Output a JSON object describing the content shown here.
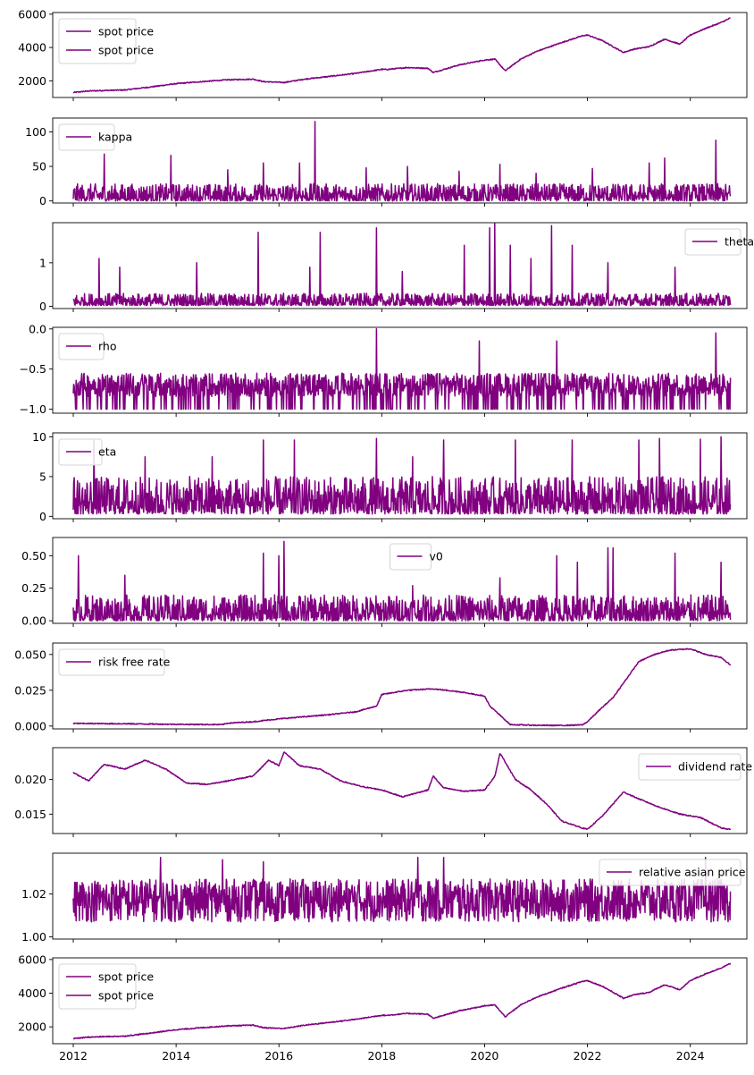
{
  "line_color": "#800080",
  "x_axis": {
    "range": [
      2011.6,
      2025.1
    ],
    "ticks": [
      2012,
      2014,
      2016,
      2018,
      2020,
      2022,
      2024
    ],
    "tick_labels": [
      "2012",
      "2014",
      "2016",
      "2018",
      "2020",
      "2022",
      "2024"
    ]
  },
  "chart_data": [
    {
      "type": "line",
      "id": "spot1",
      "legend": "upper-left",
      "ylim": [
        1000,
        6100
      ],
      "yticks": [
        2000,
        4000,
        6000
      ],
      "ytick_labels": [
        "2000",
        "4000",
        "6000"
      ],
      "series": [
        {
          "name": "spot price"
        },
        {
          "name": "spot price"
        }
      ],
      "x": [
        2012.0,
        2012.3,
        2012.6,
        2013.0,
        2013.5,
        2014.0,
        2014.5,
        2015.0,
        2015.5,
        2015.7,
        2016.1,
        2016.5,
        2017.0,
        2017.5,
        2018.0,
        2018.1,
        2018.5,
        2018.9,
        2019.0,
        2019.5,
        2020.0,
        2020.2,
        2020.4,
        2020.7,
        2021.0,
        2021.5,
        2021.9,
        2022.0,
        2022.3,
        2022.7,
        2022.9,
        2023.2,
        2023.5,
        2023.8,
        2024.0,
        2024.3,
        2024.6,
        2024.8
      ],
      "y": [
        1300,
        1390,
        1420,
        1450,
        1630,
        1830,
        1950,
        2060,
        2100,
        1950,
        1900,
        2100,
        2270,
        2450,
        2690,
        2680,
        2800,
        2750,
        2500,
        2950,
        3250,
        3300,
        2600,
        3300,
        3750,
        4300,
        4700,
        4750,
        4400,
        3700,
        3900,
        4050,
        4500,
        4200,
        4750,
        5150,
        5500,
        5800
      ]
    },
    {
      "type": "line",
      "id": "kappa",
      "legend": "upper-left",
      "ylim": [
        -3,
        120
      ],
      "yticks": [
        0,
        50,
        100
      ],
      "ytick_labels": [
        "0",
        "50",
        "100"
      ],
      "series": [
        {
          "name": "kappa"
        }
      ],
      "spikes": [
        [
          2012.6,
          68
        ],
        [
          2013.9,
          66
        ],
        [
          2015.0,
          45
        ],
        [
          2015.7,
          55
        ],
        [
          2016.4,
          55
        ],
        [
          2016.7,
          115
        ],
        [
          2017.7,
          48
        ],
        [
          2018.5,
          50
        ],
        [
          2019.5,
          43
        ],
        [
          2020.3,
          53
        ],
        [
          2021.0,
          40
        ],
        [
          2022.1,
          47
        ],
        [
          2023.2,
          55
        ],
        [
          2023.5,
          62
        ],
        [
          2024.5,
          88
        ]
      ],
      "base": [
        0,
        25
      ]
    },
    {
      "type": "line",
      "id": "theta",
      "legend": "upper-right",
      "ylim": [
        -0.05,
        1.92
      ],
      "yticks": [
        0,
        1
      ],
      "ytick_labels": [
        "0",
        "1"
      ],
      "series": [
        {
          "name": "theta"
        }
      ],
      "spikes": [
        [
          2012.5,
          1.1
        ],
        [
          2012.9,
          0.9
        ],
        [
          2014.4,
          1.0
        ],
        [
          2015.6,
          1.7
        ],
        [
          2016.6,
          0.9
        ],
        [
          2016.8,
          1.7
        ],
        [
          2017.9,
          1.8
        ],
        [
          2018.4,
          0.8
        ],
        [
          2019.6,
          1.4
        ],
        [
          2020.1,
          1.8
        ],
        [
          2020.2,
          1.9
        ],
        [
          2020.5,
          1.4
        ],
        [
          2020.9,
          1.1
        ],
        [
          2021.3,
          1.85
        ],
        [
          2021.7,
          1.4
        ],
        [
          2022.4,
          1.0
        ],
        [
          2023.7,
          0.9
        ]
      ],
      "base": [
        0.02,
        0.3
      ]
    },
    {
      "type": "line",
      "id": "rho",
      "legend": "upper-left",
      "ylim": [
        -1.05,
        0.02
      ],
      "yticks": [
        -1.0,
        -0.5,
        0.0
      ],
      "ytick_labels": [
        "−1.0",
        "−0.5",
        "0.0"
      ],
      "series": [
        {
          "name": "rho"
        }
      ],
      "spikes": [
        [
          2017.9,
          0.0
        ],
        [
          2019.9,
          -0.15
        ],
        [
          2021.4,
          -0.15
        ],
        [
          2024.5,
          -0.05
        ]
      ],
      "base": [
        -1.0,
        -0.55
      ]
    },
    {
      "type": "line",
      "id": "eta",
      "legend": "upper-left",
      "ylim": [
        -0.3,
        10.5
      ],
      "yticks": [
        0,
        5,
        10
      ],
      "ytick_labels": [
        "0",
        "5",
        "10"
      ],
      "series": [
        {
          "name": "eta"
        }
      ],
      "spikes": [
        [
          2012.4,
          9.6
        ],
        [
          2013.4,
          7.5
        ],
        [
          2014.7,
          7.5
        ],
        [
          2015.7,
          9.6
        ],
        [
          2016.3,
          9.6
        ],
        [
          2017.9,
          9.8
        ],
        [
          2018.6,
          7.5
        ],
        [
          2019.2,
          9.6
        ],
        [
          2020.6,
          9.6
        ],
        [
          2021.7,
          9.6
        ],
        [
          2023.0,
          9.6
        ],
        [
          2023.4,
          9.8
        ],
        [
          2024.2,
          9.7
        ],
        [
          2024.6,
          10.0
        ]
      ],
      "base": [
        0.3,
        5
      ]
    },
    {
      "type": "line",
      "id": "v0",
      "legend": "upper-center",
      "ylim": [
        -0.02,
        0.64
      ],
      "yticks": [
        0.0,
        0.25,
        0.5
      ],
      "ytick_labels": [
        "0.00",
        "0.25",
        "0.50"
      ],
      "series": [
        {
          "name": "v0"
        }
      ],
      "spikes": [
        [
          2012.1,
          0.5
        ],
        [
          2013.0,
          0.35
        ],
        [
          2015.7,
          0.52
        ],
        [
          2016.0,
          0.5
        ],
        [
          2016.1,
          0.61
        ],
        [
          2018.6,
          0.27
        ],
        [
          2020.3,
          0.33
        ],
        [
          2021.4,
          0.5
        ],
        [
          2021.8,
          0.45
        ],
        [
          2022.4,
          0.56
        ],
        [
          2022.5,
          0.56
        ],
        [
          2023.7,
          0.52
        ],
        [
          2024.6,
          0.45
        ]
      ],
      "base": [
        0.0,
        0.2
      ]
    },
    {
      "type": "line",
      "id": "rfr",
      "legend": "upper-left",
      "ylim": [
        -0.002,
        0.058
      ],
      "yticks": [
        0.0,
        0.025,
        0.05
      ],
      "ytick_labels": [
        "0.000",
        "0.025",
        "0.050"
      ],
      "series": [
        {
          "name": "risk free rate"
        }
      ],
      "x": [
        2012.0,
        2013.0,
        2014.0,
        2014.9,
        2015.0,
        2015.5,
        2016.0,
        2016.5,
        2017.0,
        2017.5,
        2017.9,
        2018.0,
        2018.5,
        2019.0,
        2019.5,
        2020.0,
        2020.1,
        2020.5,
        2021.0,
        2021.5,
        2021.9,
        2022.0,
        2022.2,
        2022.5,
        2022.8,
        2023.0,
        2023.3,
        2023.6,
        2024.0,
        2024.3,
        2024.6,
        2024.8
      ],
      "y": [
        0.0018,
        0.0016,
        0.0012,
        0.001,
        0.002,
        0.003,
        0.005,
        0.0065,
        0.008,
        0.01,
        0.014,
        0.022,
        0.025,
        0.026,
        0.024,
        0.021,
        0.014,
        0.001,
        0.0005,
        0.0004,
        0.0008,
        0.003,
        0.01,
        0.02,
        0.035,
        0.045,
        0.05,
        0.053,
        0.054,
        0.05,
        0.048,
        0.042
      ]
    },
    {
      "type": "line",
      "id": "div",
      "legend": "upper-right",
      "ylim": [
        0.0122,
        0.0246
      ],
      "yticks": [
        0.015,
        0.02
      ],
      "ytick_labels": [
        "0.015",
        "0.020"
      ],
      "series": [
        {
          "name": "dividend rate"
        }
      ],
      "x": [
        2012.0,
        2012.3,
        2012.6,
        2013.0,
        2013.4,
        2013.8,
        2014.2,
        2014.6,
        2015.0,
        2015.5,
        2015.8,
        2016.0,
        2016.1,
        2016.4,
        2016.8,
        2017.2,
        2017.6,
        2018.0,
        2018.4,
        2018.9,
        2019.0,
        2019.2,
        2019.6,
        2020.0,
        2020.2,
        2020.3,
        2020.6,
        2020.9,
        2021.2,
        2021.5,
        2021.9,
        2022.0,
        2022.3,
        2022.7,
        2023.0,
        2023.4,
        2023.8,
        2024.2,
        2024.6,
        2024.8
      ],
      "y": [
        0.021,
        0.0198,
        0.0222,
        0.0215,
        0.0228,
        0.0215,
        0.0195,
        0.0193,
        0.0198,
        0.0205,
        0.0228,
        0.022,
        0.024,
        0.022,
        0.0215,
        0.0198,
        0.019,
        0.0185,
        0.0175,
        0.0185,
        0.0205,
        0.0188,
        0.0183,
        0.0185,
        0.0205,
        0.0238,
        0.02,
        0.0185,
        0.0165,
        0.014,
        0.013,
        0.0128,
        0.0148,
        0.0182,
        0.0172,
        0.016,
        0.015,
        0.0145,
        0.013,
        0.0128
      ]
    },
    {
      "type": "line",
      "id": "asian",
      "legend": "upper-right",
      "ylim": [
        0.999,
        1.039
      ],
      "yticks": [
        1.0,
        1.02
      ],
      "ytick_labels": [
        "1.00",
        "1.02"
      ],
      "series": [
        {
          "name": "relative asian price"
        }
      ],
      "spikes": [
        [
          2013.7,
          1.037
        ],
        [
          2014.9,
          1.036
        ],
        [
          2015.7,
          1.035
        ],
        [
          2018.7,
          1.037
        ],
        [
          2019.2,
          1.037
        ],
        [
          2024.3,
          1.037
        ]
      ],
      "base": [
        1.007,
        1.027
      ]
    },
    {
      "type": "line",
      "id": "spot2",
      "legend": "upper-left",
      "ylim": [
        1000,
        6100
      ],
      "yticks": [
        2000,
        4000,
        6000
      ],
      "ytick_labels": [
        "2000",
        "4000",
        "6000"
      ],
      "series": [
        {
          "name": "spot price"
        },
        {
          "name": "spot price"
        }
      ],
      "same_as": "spot1"
    }
  ]
}
